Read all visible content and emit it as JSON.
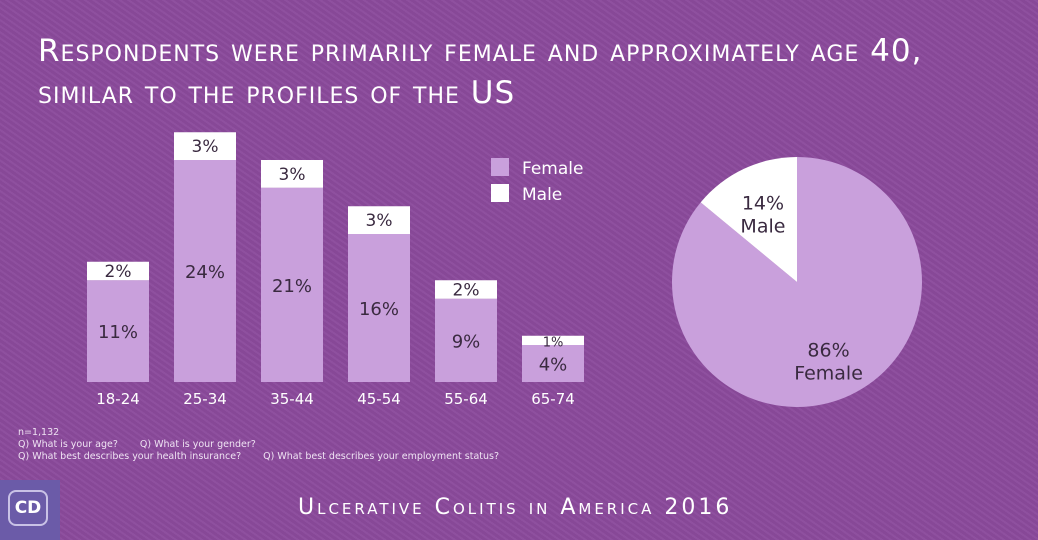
{
  "title": "Respondents were primarily female and approximately age 40, similar to the profiles of the US",
  "notes": {
    "n": "n=1,132",
    "q1": "Q) What is your age?",
    "q2": "Q) What is your gender?",
    "q3": "Q) What best describes your health insurance?",
    "q4": "Q) What best describes your employment status?"
  },
  "footer": "Ulcerative Colitis in America 2016",
  "logo": "CD",
  "colors": {
    "background": "#8b4a9c",
    "female": "#c9a0dc",
    "male": "#ffffff"
  },
  "chart_data": [
    {
      "type": "bar",
      "stacked": true,
      "categories": [
        "18-24",
        "25-34",
        "35-44",
        "45-54",
        "55-64",
        "65-74"
      ],
      "series": [
        {
          "name": "Female",
          "values": [
            11,
            24,
            21,
            16,
            9,
            4
          ]
        },
        {
          "name": "Male",
          "values": [
            2,
            3,
            3,
            3,
            2,
            1
          ]
        }
      ],
      "labels": {
        "Female": [
          "11%",
          "24%",
          "21%",
          "16%",
          "9%",
          "4%"
        ],
        "Male": [
          "2%",
          "3%",
          "3%",
          "3%",
          "2%",
          "1%"
        ]
      },
      "legend": "top-right",
      "grid": false
    },
    {
      "type": "pie",
      "slices": [
        {
          "name": "Female",
          "value": 86,
          "label": "86%"
        },
        {
          "name": "Male",
          "value": 14,
          "label": "14%"
        }
      ]
    }
  ]
}
